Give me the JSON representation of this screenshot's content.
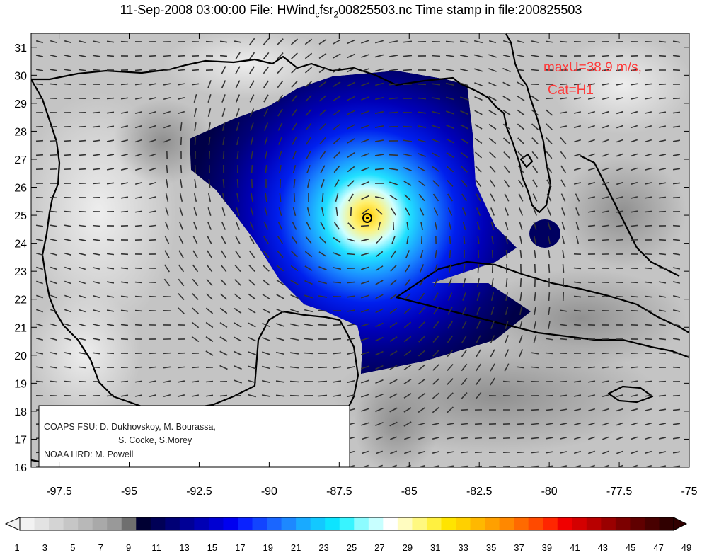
{
  "title": {
    "date": "11-Sep-2008 03:00:00",
    "file_label": "File:",
    "file_part1": "HWind",
    "file_sub": "c",
    "file_part2": "fsr",
    "file_sub2": "2",
    "file_part3": "00825503.nc",
    "stamp_label": "Time stamp in file:200825503"
  },
  "annotations": {
    "max_wind": "maxU=38.9 m/s,",
    "category": "Cat=H1",
    "color": "#ff3a3a"
  },
  "credits": {
    "line1": "COAPS FSU: D. Dukhovskoy, M. Bourassa,",
    "line2": "S. Cocke, S.Morey",
    "line3": "NOAA HRD:  M. Powell"
  },
  "axes": {
    "x_ticks": [
      "-97.5",
      "-95",
      "-92.5",
      "-90",
      "-87.5",
      "-85",
      "-82.5",
      "-80",
      "-77.5",
      "-75"
    ],
    "y_ticks": [
      "31",
      "30",
      "29",
      "28",
      "27",
      "26",
      "25",
      "24",
      "23",
      "22",
      "21",
      "20",
      "19",
      "18",
      "17",
      "16"
    ],
    "lon_range": [
      -98.5,
      -75
    ],
    "lat_range": [
      16,
      31.5
    ]
  },
  "storm": {
    "center_lon": -86.5,
    "center_lat": 24.9
  },
  "colorbar": {
    "labels": [
      "1",
      "3",
      "5",
      "7",
      "9",
      "11",
      "13",
      "15",
      "17",
      "19",
      "21",
      "23",
      "25",
      "27",
      "29",
      "31",
      "33",
      "35",
      "37",
      "39",
      "41",
      "43",
      "45",
      "47",
      "49"
    ],
    "colors": [
      "#f2f2f2",
      "#e3e3e3",
      "#d4d4d4",
      "#c6c6c6",
      "#b8b8b8",
      "#a9a9a9",
      "#999999",
      "#6f6f6f",
      "#000033",
      "#000056",
      "#000075",
      "#000096",
      "#0000b4",
      "#0000d2",
      "#0000f0",
      "#0a22ff",
      "#1244ff",
      "#1a66ff",
      "#1d88ff",
      "#19aaff",
      "#13c8ff",
      "#0de4ff",
      "#38f4ff",
      "#8cfcff",
      "#c8ffff",
      "#ffffff",
      "#fffcc0",
      "#fff880",
      "#fff040",
      "#ffe400",
      "#ffd000",
      "#ffb800",
      "#ffa000",
      "#ff8800",
      "#ff6a00",
      "#ff4a00",
      "#ff2600",
      "#f00000",
      "#d40000",
      "#b80000",
      "#9a0000",
      "#7c0000",
      "#600000",
      "#480000",
      "#300000"
    ]
  }
}
